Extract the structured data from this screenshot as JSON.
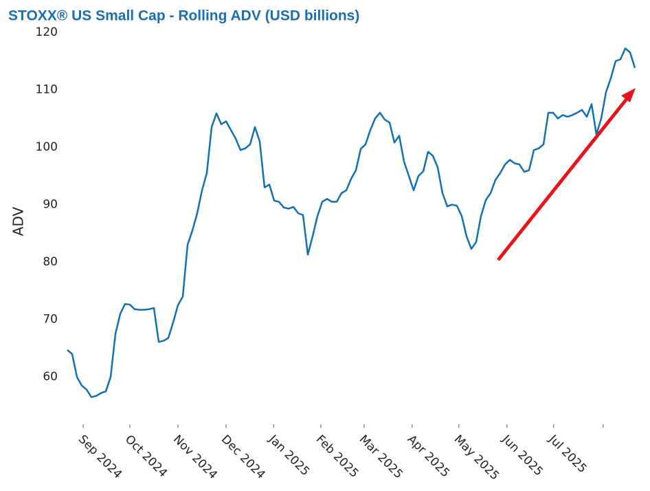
{
  "chart_data": {
    "type": "line",
    "title": "STOXX® US Small Cap - Rolling ADV (USD billions)",
    "y_label": "ADV",
    "series": [
      {
        "name": "ADV",
        "color": "#1170b5",
        "values": [
          64.7,
          64,
          60,
          58.5,
          57.8,
          56.5,
          56.7,
          57.2,
          57.5,
          60,
          67.5,
          71,
          72.7,
          72.6,
          71.8,
          71.7,
          71.7,
          71.8,
          72,
          66.1,
          66.3,
          66.8,
          69.5,
          72.5,
          74,
          83,
          85.5,
          88.5,
          92.5,
          95.5,
          103.5,
          105.9,
          104,
          104.5,
          103,
          101.5,
          99.5,
          99.8,
          100.5,
          103.5,
          101,
          93,
          93.5,
          90.7,
          90.5,
          89.5,
          89.3,
          89.6,
          88.5,
          88.2,
          81.3,
          84.5,
          88,
          90.5,
          91,
          90.5,
          90.5,
          92,
          92.5,
          94.5,
          96,
          99.7,
          100.5,
          103,
          105,
          106,
          104.8,
          104.3,
          100.8,
          102,
          97.5,
          95,
          92.5,
          95,
          95.8,
          99.2,
          98.5,
          96.5,
          92,
          89.7,
          90,
          89.8,
          88,
          84.5,
          82.3,
          83.5,
          88,
          90.8,
          92,
          94.3,
          95.5,
          97,
          97.8,
          97.2,
          97,
          95.7,
          96,
          99.5,
          99.8,
          100.5,
          106,
          106,
          105,
          105.6,
          105.3,
          105.6,
          106,
          106.5,
          105.3,
          107.5,
          102.2,
          105,
          109.6,
          112,
          115,
          115.3,
          117.2,
          116.5,
          113.8
        ]
      }
    ],
    "xlim": [
      0,
      118
    ],
    "xticks": [
      {
        "value": 3.3,
        "label": "Sep 2024"
      },
      {
        "value": 13,
        "label": "Oct 2024"
      },
      {
        "value": 23,
        "label": "Nov 2024"
      },
      {
        "value": 33,
        "label": "Dec 2024"
      },
      {
        "value": 42.9,
        "label": "Jan 2025"
      },
      {
        "value": 52.7,
        "label": "Feb 2025"
      },
      {
        "value": 61.7,
        "label": "Mar 2025"
      },
      {
        "value": 71.7,
        "label": "Apr 2025"
      },
      {
        "value": 81.4,
        "label": "May 2025"
      },
      {
        "value": 91.4,
        "label": "Jun 2025"
      },
      {
        "value": 101.1,
        "label": "Jul 2025"
      },
      {
        "value": 111.4,
        "label": null
      }
    ],
    "ylim": [
      52,
      120
    ],
    "yticks": [
      60,
      70,
      80,
      90,
      100,
      110,
      120
    ],
    "grid": false
  }
}
